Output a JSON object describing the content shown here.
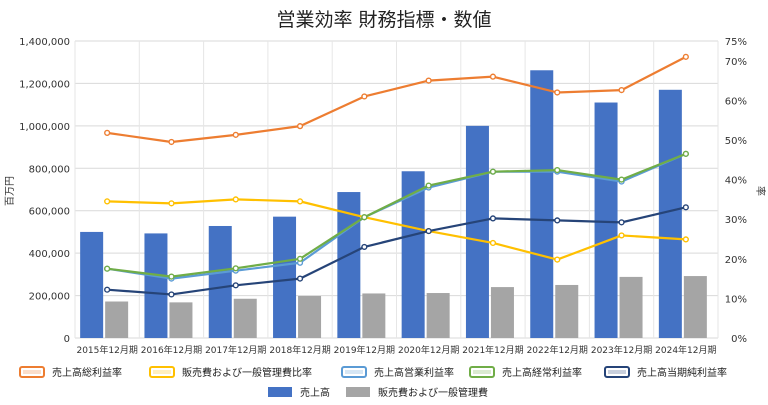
{
  "chart_data": {
    "type": "bar+line",
    "title": "営業効率 財務指標・数値",
    "ylabel_left": "百万円",
    "ylabel_right": "率",
    "categories": [
      "2015年12月期",
      "2016年12月期",
      "2017年12月期",
      "2018年12月期",
      "2019年12月期",
      "2020年12月期",
      "2021年12月期",
      "2022年12月期",
      "2023年12月期",
      "2024年12月期"
    ],
    "left_axis": {
      "min": 0,
      "max": 1400000,
      "ticks": [
        "0",
        "200,000",
        "400,000",
        "600,000",
        "800,000",
        "1,000,000",
        "1,200,000",
        "1,400,000"
      ]
    },
    "right_axis": {
      "min": 0,
      "max": 75,
      "ticks": [
        "0%",
        "10%",
        "20%",
        "30%",
        "40%",
        "50%",
        "60%",
        "70%",
        "75%"
      ]
    },
    "bars": [
      {
        "name": "売上高",
        "color": "#4472c4",
        "values": [
          500000,
          493000,
          528000,
          572000,
          688000,
          786000,
          1000000,
          1262000,
          1110000,
          1170000
        ]
      },
      {
        "name": "販売費および一般管理費",
        "color": "#a5a5a5",
        "values": [
          172000,
          168000,
          185000,
          198000,
          210000,
          212000,
          240000,
          250000,
          288000,
          292000
        ]
      }
    ],
    "lines": [
      {
        "name": "売上高総利益率",
        "color": "#ed7d31",
        "values": [
          51.8,
          49.5,
          51.3,
          53.5,
          61.0,
          65.0,
          66.0,
          62.0,
          62.6,
          71.0
        ]
      },
      {
        "name": "販売費および一般管理費比率",
        "color": "#ffc000",
        "values": [
          34.5,
          34.0,
          35.0,
          34.5,
          30.5,
          27.0,
          24.0,
          19.8,
          25.9,
          24.9
        ]
      },
      {
        "name": "売上高営業利益率",
        "color": "#5b9bd5",
        "values": [
          17.5,
          15.0,
          17.0,
          19.0,
          30.5,
          38.0,
          42.0,
          42.0,
          39.5,
          46.5
        ]
      },
      {
        "name": "売上高経常利益率",
        "color": "#70ad47",
        "values": [
          17.5,
          15.5,
          17.6,
          20.0,
          30.5,
          38.5,
          42.0,
          42.4,
          40.0,
          46.5
        ]
      },
      {
        "name": "売上高当期純利益率",
        "color": "#264478",
        "values": [
          12.2,
          11.0,
          13.3,
          15.0,
          23.0,
          27.0,
          30.2,
          29.7,
          29.2,
          33.0
        ]
      }
    ],
    "legend_position": "bottom",
    "grid": true
  }
}
